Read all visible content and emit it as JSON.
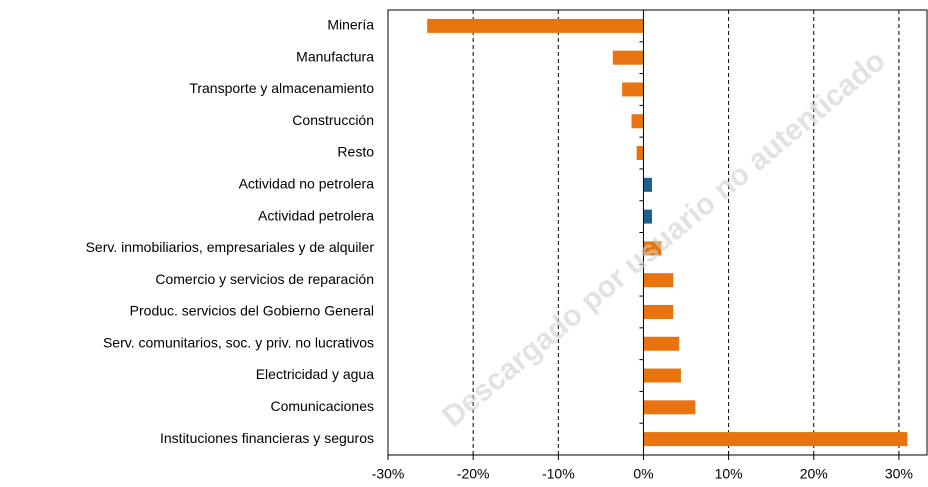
{
  "chart_data": {
    "type": "barh",
    "categories": [
      "Minería",
      "Manufactura",
      "Transporte y almacenamiento",
      "Construcción",
      "Resto",
      "Actividad no petrolera",
      "Actividad petrolera",
      "Serv. inmobiliarios, empresariales y de alquiler",
      "Comercio y servicios de reparación",
      "Produc. servicios del Gobierno General",
      "Serv. comunitarios, soc. y priv. no lucrativos",
      "Electricidad y agua",
      "Comunicaciones",
      "Instituciones financieras y seguros"
    ],
    "values": [
      -25.4,
      -3.6,
      -2.5,
      -1.4,
      -0.8,
      1.0,
      1.0,
      2.1,
      3.5,
      3.5,
      4.2,
      4.4,
      6.1,
      31.0
    ],
    "colors": [
      "#e8730f",
      "#e8730f",
      "#e8730f",
      "#e8730f",
      "#e8730f",
      "#1f5f8b",
      "#1f5f8b",
      "#e8730f",
      "#e8730f",
      "#e8730f",
      "#e8730f",
      "#e8730f",
      "#e8730f",
      "#e8730f"
    ],
    "xlim": [
      -30,
      33.3
    ],
    "xticks": [
      {
        "value": -30,
        "label": "-30%"
      },
      {
        "value": -20,
        "label": "-20%"
      },
      {
        "value": -10,
        "label": "-10%"
      },
      {
        "value": 0,
        "label": "0%"
      },
      {
        "value": 10,
        "label": "10%"
      },
      {
        "value": 20,
        "label": "20%"
      },
      {
        "value": 30,
        "label": "30%"
      }
    ],
    "grid": true,
    "watermark": "Descargado por usuario no autenticado"
  }
}
